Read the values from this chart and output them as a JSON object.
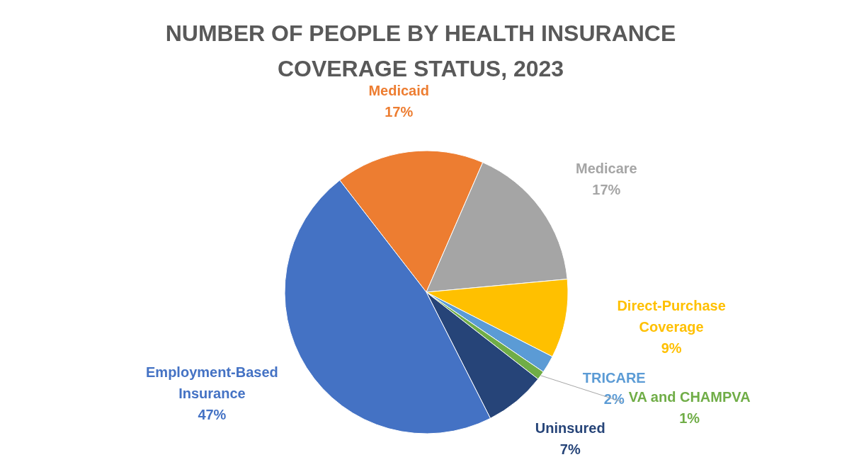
{
  "chart_data": {
    "type": "pie",
    "title": "NUMBER OF PEOPLE BY HEALTH INSURANCE COVERAGE STATUS, 2023",
    "categories": [
      "Medicaid",
      "Medicare",
      "Direct-Purchase Coverage",
      "TRICARE",
      "VA and CHAMPVA",
      "Uninsured",
      "Employment-Based Insurance"
    ],
    "values": [
      17,
      17,
      9,
      2,
      1,
      7,
      47
    ],
    "colors": [
      "#ed7d31",
      "#a5a5a5",
      "#ffc000",
      "#5b9bd5",
      "#70ad47",
      "#264478",
      "#4472c4"
    ],
    "value_labels": [
      "17%",
      "17%",
      "9%",
      "2%",
      "1%",
      "7%",
      "47%"
    ],
    "legend": false
  }
}
